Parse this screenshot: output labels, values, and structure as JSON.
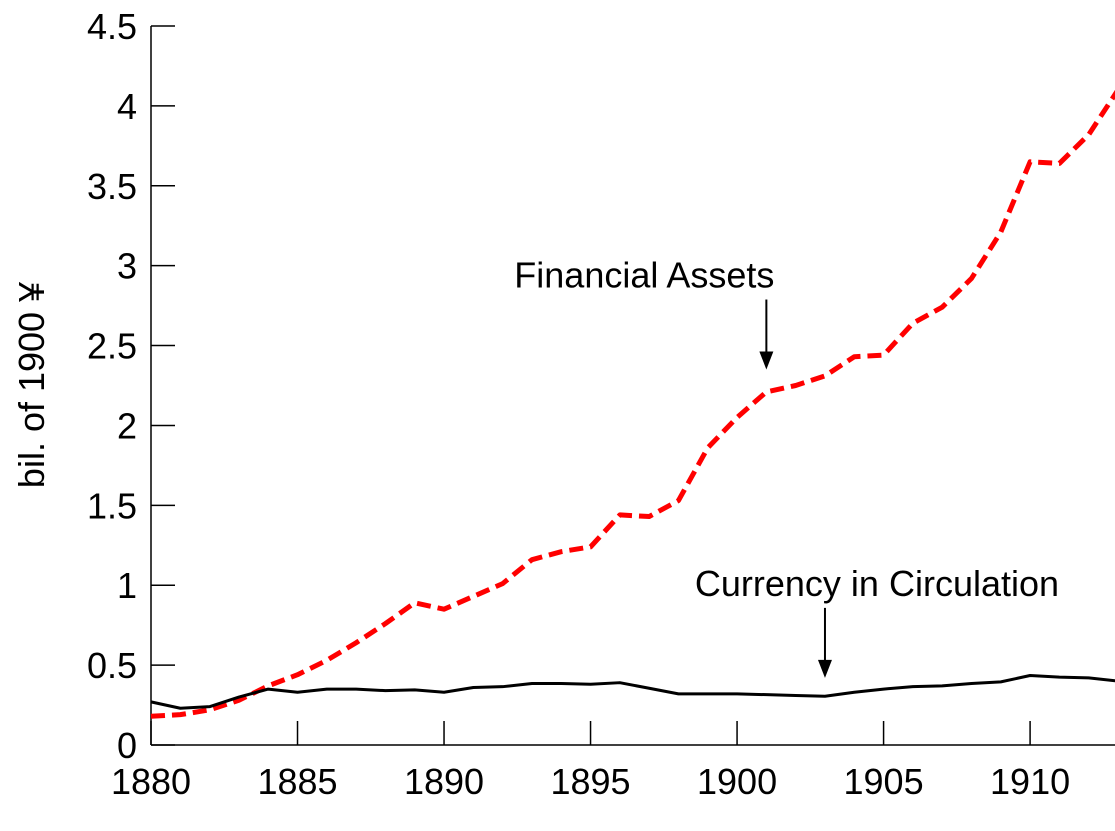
{
  "chart_data": {
    "type": "line",
    "ylabel": "bil. of 1900 ¥",
    "x": [
      1880,
      1881,
      1882,
      1883,
      1884,
      1885,
      1886,
      1887,
      1888,
      1889,
      1890,
      1891,
      1892,
      1893,
      1894,
      1895,
      1896,
      1897,
      1898,
      1899,
      1900,
      1901,
      1902,
      1903,
      1904,
      1905,
      1906,
      1907,
      1908,
      1909,
      1910,
      1911,
      1912,
      1913
    ],
    "series": [
      {
        "name": "Financial Assets",
        "color": "#ff0000",
        "line_style": "dashed",
        "values": [
          0.18,
          0.19,
          0.22,
          0.28,
          0.37,
          0.44,
          0.53,
          0.64,
          0.76,
          0.89,
          0.85,
          0.93,
          1.01,
          1.16,
          1.21,
          1.24,
          1.44,
          1.43,
          1.53,
          1.86,
          2.05,
          2.21,
          2.25,
          2.31,
          2.43,
          2.44,
          2.64,
          2.74,
          2.92,
          3.21,
          3.65,
          3.64,
          3.82,
          4.1
        ]
      },
      {
        "name": "Currency in Circulation",
        "color": "#000000",
        "line_style": "solid",
        "values": [
          0.27,
          0.23,
          0.24,
          0.3,
          0.35,
          0.33,
          0.35,
          0.35,
          0.34,
          0.345,
          0.33,
          0.36,
          0.365,
          0.385,
          0.385,
          0.38,
          0.39,
          0.355,
          0.32,
          0.32,
          0.32,
          0.315,
          0.31,
          0.305,
          0.33,
          0.35,
          0.365,
          0.37,
          0.385,
          0.395,
          0.435,
          0.425,
          0.42,
          0.4
        ]
      }
    ],
    "annotations": [
      {
        "text": "Financial Assets",
        "x": 1901,
        "y": 2.35
      },
      {
        "text": "Currency in Circulation",
        "x": 1903,
        "y": 0.42
      }
    ],
    "xlim": [
      1880,
      1913
    ],
    "xticks": [
      1880,
      1885,
      1890,
      1895,
      1900,
      1905,
      1910
    ],
    "ylim": [
      0,
      4.5
    ],
    "yticks": [
      0,
      0.5,
      1,
      1.5,
      2,
      2.5,
      3,
      3.5,
      4,
      4.5
    ]
  }
}
